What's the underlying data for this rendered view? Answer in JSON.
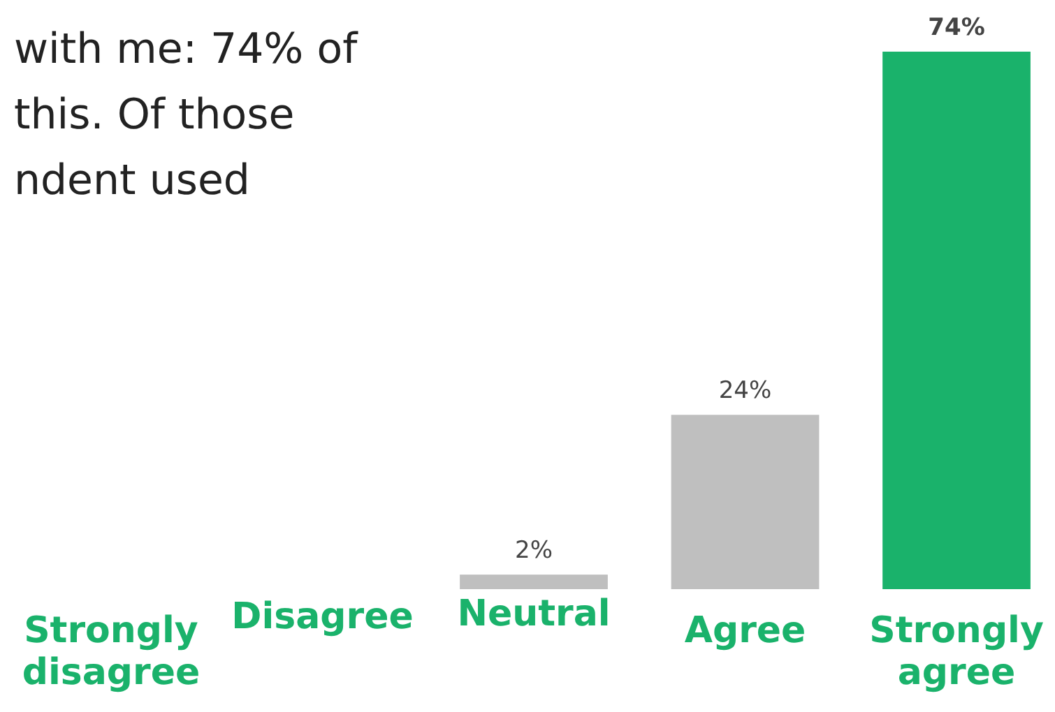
{
  "chart_data": {
    "type": "bar",
    "annotations": [
      "with me: 74% of",
      "this. Of those",
      "ndent used"
    ],
    "categories": [
      "Strongly disagree",
      "Disagree",
      "Neutral",
      "Agree",
      "Strongly agree"
    ],
    "values": [
      0,
      0,
      2,
      24,
      74
    ],
    "colors": [
      "#bfbfbf",
      "#bfbfbf",
      "#bfbfbf",
      "#bfbfbf",
      "#1ab26b"
    ],
    "value_labels": [
      null,
      null,
      "2%",
      "24%",
      "74%"
    ]
  }
}
